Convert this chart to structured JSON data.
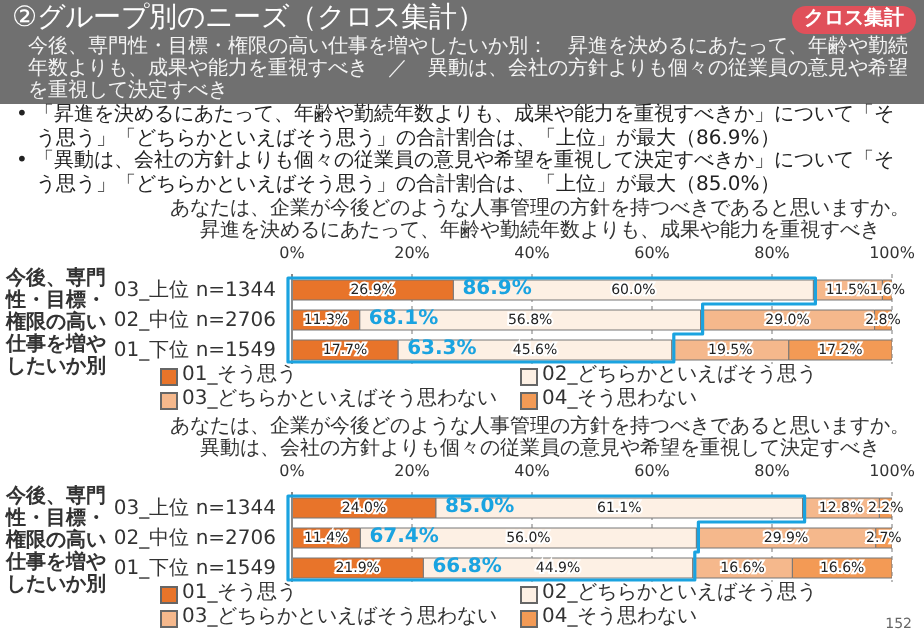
{
  "chart_data": [
    {
      "type": "other",
      "title": "②グループ別のニーズ（クロス集計）",
      "subtitle": "今後、専門性・目標・権限の高い仕事を増やしたいか別：　昇進を決めるにあたって、年齢や勤続年数よりも、成果や能力を重視すべき　／　異動は、会社の方針よりも個々の従業員の意見や希望を重視して決定すべき",
      "annotations": [
        "クロス集計",
        "• 「昇進を決めるにあたって、年齢や勤続年数よりも、成果や能力を重視すべきか」について「そう思う」「どちらかといえばそう思う」の合計割合は、「上位」が最大（86.9%）",
        "• 「異動は、会社の方針よりも個々の従業員の意見や希望を重視して決定すべきか」について「そう思う」「どちらかといえばそう思う」の合計割合は、「上位」が最大（85.0%）",
        "152"
      ]
    },
    {
      "type": "bar",
      "orientation": "horizontal",
      "stacked": true,
      "title": "あなたは、企業が今後どのような人事管理の方針を持つべきであると思いますか。",
      "subtitle": "昇進を決めるにあたって、年齢や勤続年数よりも、成果や能力を重視すべき",
      "ylabel": "今後、専門性・目標・権限の高い仕事を増やしたいか別",
      "categories": [
        "03_上位 n=1344",
        "02_中位 n=2706",
        "01_下位 n=1549"
      ],
      "series": [
        {
          "name": "01_そう思う",
          "color": "#e8742a",
          "values": [
            26.9,
            11.3,
            17.7
          ],
          "value_labels": [
            "26.9%",
            "11.3%",
            "17.7%"
          ]
        },
        {
          "name": "02_どちらかといえばそう思う",
          "color": "#fdf0e4",
          "values": [
            60.0,
            56.8,
            45.6
          ],
          "value_labels": [
            "60.0%",
            "56.8%",
            "45.6%"
          ]
        },
        {
          "name": "03_どちらかといえばそう思わない",
          "color": "#f5b88c",
          "values": [
            11.5,
            29.0,
            19.5
          ],
          "value_labels": [
            "11.5%",
            "29.0%",
            "19.5%"
          ]
        },
        {
          "name": "04_そう思わない",
          "color": "#f39a55",
          "values": [
            1.6,
            2.8,
            17.2
          ],
          "value_labels": [
            "1.6%",
            "2.8%",
            "17.2%"
          ]
        }
      ],
      "xlim": [
        0,
        100
      ],
      "xticks": [
        {
          "value": 0,
          "label": "0%"
        },
        {
          "value": 20,
          "label": "20%"
        },
        {
          "value": 40,
          "label": "40%"
        },
        {
          "value": 60,
          "label": "60%"
        },
        {
          "value": 80,
          "label": "80%"
        },
        {
          "value": 100,
          "label": "100%"
        }
      ],
      "grid": "x",
      "legend": "bottom",
      "annotations": [
        "86.9%",
        "68.1%",
        "63.3%"
      ]
    },
    {
      "type": "bar",
      "orientation": "horizontal",
      "stacked": true,
      "title": "あなたは、企業が今後どのような人事管理の方針を持つべきであると思いますか。",
      "subtitle": "異動は、会社の方針よりも個々の従業員の意見や希望を重視して決定すべき",
      "ylabel": "今後、専門性・目標・権限の高い仕事を増やしたいか別",
      "categories": [
        "03_上位 n=1344",
        "02_中位 n=2706",
        "01_下位 n=1549"
      ],
      "series": [
        {
          "name": "01_そう思う",
          "color": "#e8742a",
          "values": [
            24.0,
            11.4,
            21.9
          ],
          "value_labels": [
            "24.0%",
            "11.4%",
            "21.9%"
          ]
        },
        {
          "name": "02_どちらかといえばそう思う",
          "color": "#fdf0e4",
          "values": [
            61.1,
            56.0,
            44.9
          ],
          "value_labels": [
            "61.1%",
            "56.0%",
            "44.9%"
          ]
        },
        {
          "name": "03_どちらかといえばそう思わない",
          "color": "#f5b88c",
          "values": [
            12.8,
            29.9,
            16.6
          ],
          "value_labels": [
            "12.8%",
            "29.9%",
            "16.6%"
          ]
        },
        {
          "name": "04_そう思わない",
          "color": "#f39a55",
          "values": [
            2.2,
            2.7,
            16.6
          ],
          "value_labels": [
            "2.2%",
            "2.7%",
            "16.6%"
          ]
        }
      ],
      "xlim": [
        0,
        100
      ],
      "xticks": [
        {
          "value": 0,
          "label": "0%"
        },
        {
          "value": 20,
          "label": "20%"
        },
        {
          "value": 40,
          "label": "40%"
        },
        {
          "value": 60,
          "label": "60%"
        },
        {
          "value": 80,
          "label": "80%"
        },
        {
          "value": 100,
          "label": "100%"
        }
      ],
      "grid": "x",
      "legend": "bottom",
      "annotations": [
        "85.0%",
        "67.4%",
        "66.8%"
      ]
    }
  ]
}
